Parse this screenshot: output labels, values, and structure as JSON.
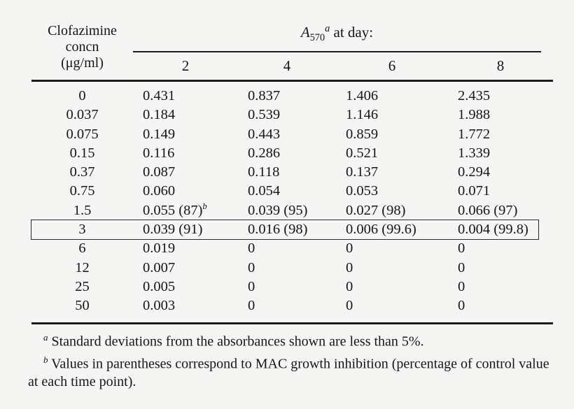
{
  "colors": {
    "background": "#f5f5f4",
    "text": "#161616",
    "rule": "#1c1c1c"
  },
  "table": {
    "concn_header_lines": [
      "Clofazimine",
      "concn",
      "(μg/ml)"
    ],
    "span_header": {
      "symbol": "A",
      "subscript": "570",
      "superscript": "a",
      "rest": " at day:"
    },
    "day_headers": [
      "2",
      "4",
      "6",
      "8"
    ],
    "rows": [
      {
        "concn": "0",
        "boxed": false,
        "cells": [
          {
            "text": "0.431"
          },
          {
            "text": "0.837"
          },
          {
            "text": "1.406"
          },
          {
            "text": "2.435"
          }
        ]
      },
      {
        "concn": "0.037",
        "boxed": false,
        "cells": [
          {
            "text": "0.184"
          },
          {
            "text": "0.539"
          },
          {
            "text": "1.146"
          },
          {
            "text": "1.988"
          }
        ]
      },
      {
        "concn": "0.075",
        "boxed": false,
        "cells": [
          {
            "text": "0.149"
          },
          {
            "text": "0.443"
          },
          {
            "text": "0.859"
          },
          {
            "text": "1.772"
          }
        ]
      },
      {
        "concn": "0.15",
        "boxed": false,
        "cells": [
          {
            "text": "0.116"
          },
          {
            "text": "0.286"
          },
          {
            "text": "0.521"
          },
          {
            "text": "1.339"
          }
        ]
      },
      {
        "concn": "0.37",
        "boxed": false,
        "cells": [
          {
            "text": "0.087"
          },
          {
            "text": "0.118"
          },
          {
            "text": "0.137"
          },
          {
            "text": "0.294"
          }
        ]
      },
      {
        "concn": "0.75",
        "boxed": false,
        "cells": [
          {
            "text": "0.060"
          },
          {
            "text": "0.054"
          },
          {
            "text": "0.053"
          },
          {
            "text": "0.071"
          }
        ]
      },
      {
        "concn": "1.5",
        "boxed": false,
        "cells": [
          {
            "text": "0.055 (87)",
            "sup": "b"
          },
          {
            "text": "0.039 (95)"
          },
          {
            "text": "0.027 (98)"
          },
          {
            "text": "0.066 (97)"
          }
        ]
      },
      {
        "concn": "3",
        "boxed": true,
        "cells": [
          {
            "text": "0.039 (91)"
          },
          {
            "text": "0.016 (98)"
          },
          {
            "text": "0.006 (99.6)"
          },
          {
            "text": "0.004 (99.8)"
          }
        ]
      },
      {
        "concn": "6",
        "boxed": false,
        "cells": [
          {
            "text": "0.019"
          },
          {
            "text": "0"
          },
          {
            "text": "0"
          },
          {
            "text": "0"
          }
        ]
      },
      {
        "concn": "12",
        "boxed": false,
        "cells": [
          {
            "text": "0.007"
          },
          {
            "text": "0"
          },
          {
            "text": "0"
          },
          {
            "text": "0"
          }
        ]
      },
      {
        "concn": "25",
        "boxed": false,
        "cells": [
          {
            "text": "0.005"
          },
          {
            "text": "0"
          },
          {
            "text": "0"
          },
          {
            "text": "0"
          }
        ]
      },
      {
        "concn": "50",
        "boxed": false,
        "cells": [
          {
            "text": "0.003"
          },
          {
            "text": "0"
          },
          {
            "text": "0"
          },
          {
            "text": "0"
          }
        ]
      }
    ]
  },
  "footnotes": [
    {
      "marker": "a",
      "text": " Standard deviations from the absorbances shown are less than 5%."
    },
    {
      "marker": "b",
      "text": " Values in parentheses correspond to MAC growth inhibition (percentage of control value at each time point)."
    }
  ]
}
